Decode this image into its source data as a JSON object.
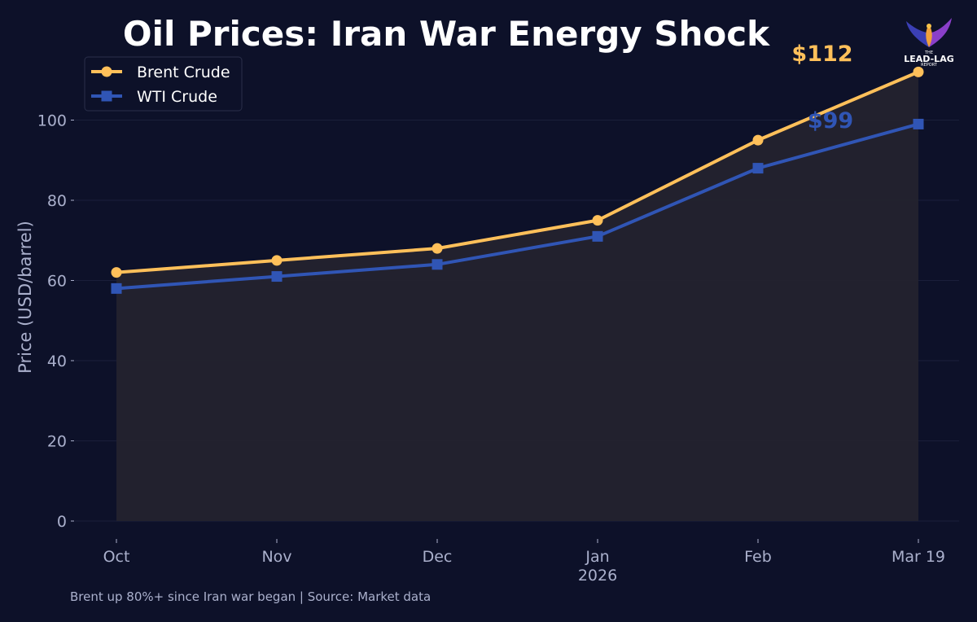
{
  "chart_data": {
    "type": "line",
    "title": "Oil Prices: Iran War Energy Shock",
    "ylabel": "Price (USD/barrel)",
    "xlabel": "",
    "categories": [
      "Oct",
      "Nov",
      "Dec",
      "Jan",
      "Feb",
      "Mar 19"
    ],
    "category_sublabels": [
      "",
      "",
      "",
      "2026",
      "",
      ""
    ],
    "yticks": [
      0,
      20,
      40,
      60,
      80,
      100
    ],
    "ylim": [
      0,
      113
    ],
    "grid": true,
    "legend_position": "top-left",
    "series": [
      {
        "name": "Brent Crude",
        "values": [
          62,
          65,
          68,
          75,
          95,
          112
        ],
        "color": "#ffc05a",
        "marker": "circle"
      },
      {
        "name": "WTI Crude",
        "values": [
          58,
          61,
          64,
          71,
          88,
          99
        ],
        "color": "#3055b5",
        "marker": "square"
      }
    ],
    "annotations": [
      {
        "text": "$112",
        "series": "Brent Crude",
        "color": "#ffc05a"
      },
      {
        "text": "$99",
        "series": "WTI Crude",
        "color": "#3055b5"
      }
    ],
    "footer": "Brent up 80%+ since Iran war began | Source: Market data"
  },
  "logo": {
    "text_top": "THE",
    "text_main": "LEAD-LAG",
    "text_bottom": "REPORT",
    "icon": "phoenix-logo-icon"
  },
  "colors": {
    "background": "#0d1129",
    "fill_area": "#24232e",
    "grid": "#1a1f3a"
  }
}
